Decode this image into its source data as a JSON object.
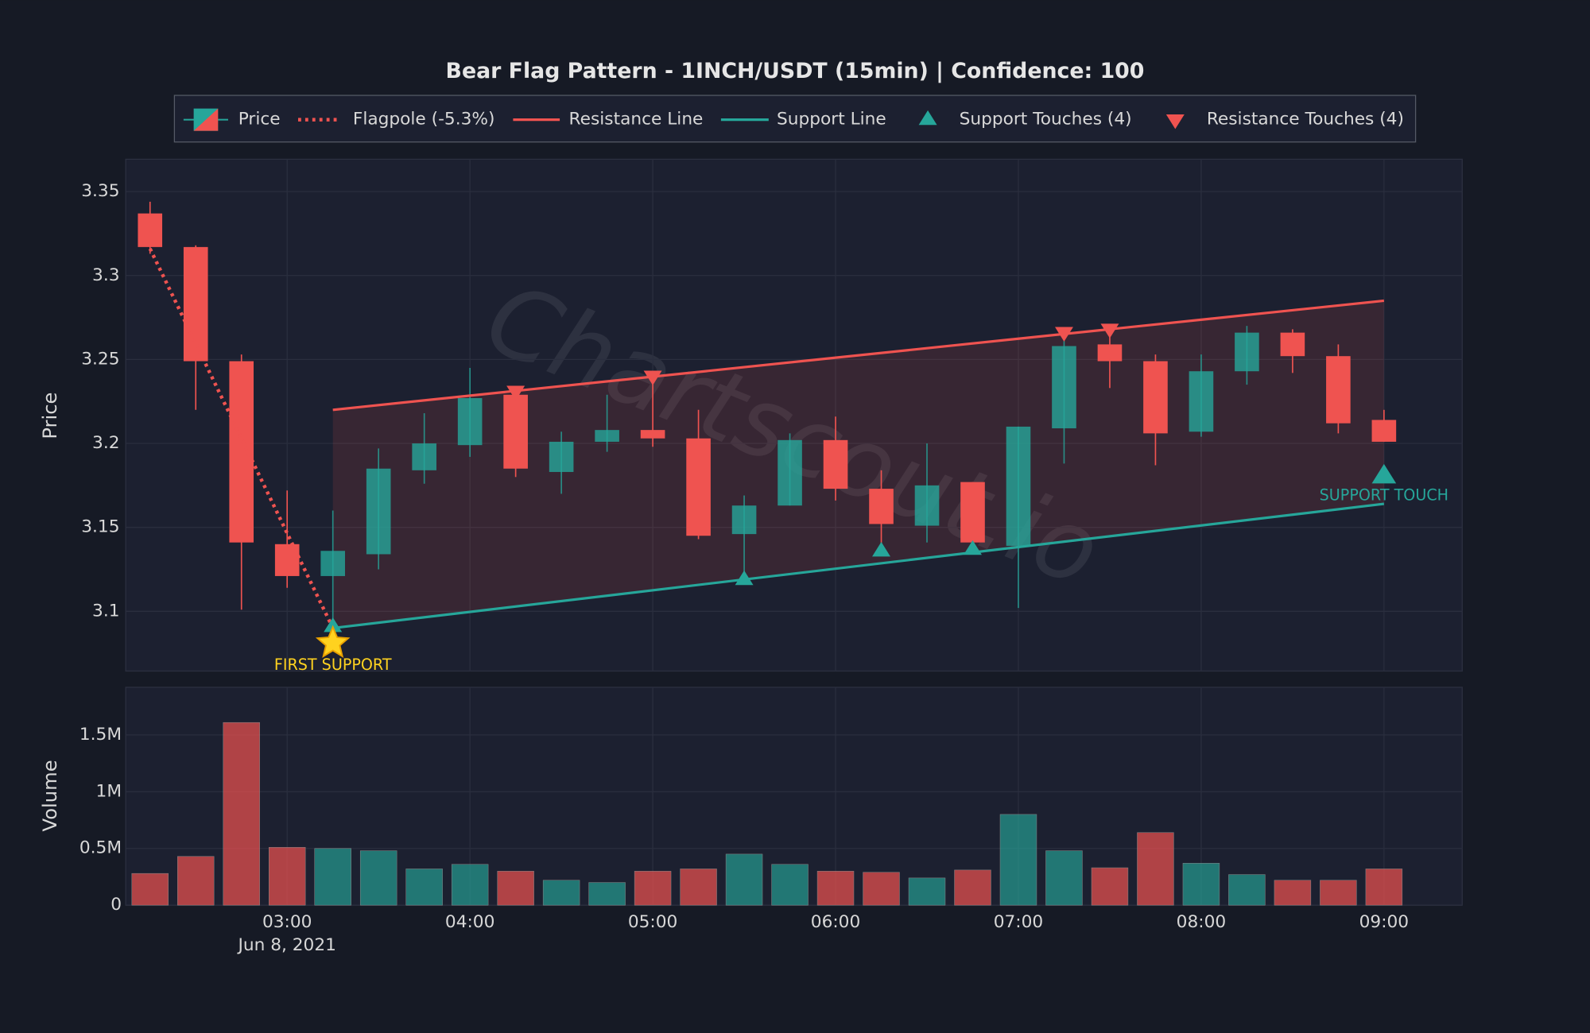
{
  "chart_data": {
    "type": "candlestick",
    "title": "Bear Flag Pattern - 1INCH/USDT (15min) | Confidence: 100",
    "watermark": "Chartscout.io",
    "price_name": "Price",
    "up_color": "#26a69a",
    "down_color": "#ef5350",
    "x": [
      2.25,
      2.5,
      2.75,
      3.0,
      3.25,
      3.5,
      3.75,
      4.0,
      4.25,
      4.5,
      4.75,
      5.0,
      5.25,
      5.5,
      5.75,
      6.0,
      6.25,
      6.5,
      6.75,
      7.0,
      7.25,
      7.5,
      7.75,
      8.0,
      8.25,
      8.5,
      8.75,
      9.0
    ],
    "open": [
      3.337,
      3.317,
      3.249,
      3.14,
      3.121,
      3.134,
      3.184,
      3.199,
      3.229,
      3.183,
      3.201,
      3.208,
      3.203,
      3.146,
      3.163,
      3.202,
      3.173,
      3.151,
      3.177,
      3.139,
      3.209,
      3.259,
      3.249,
      3.207,
      3.243,
      3.266,
      3.252,
      3.214
    ],
    "high": [
      3.344,
      3.318,
      3.253,
      3.172,
      3.16,
      3.197,
      3.218,
      3.245,
      3.232,
      3.207,
      3.229,
      3.239,
      3.22,
      3.169,
      3.206,
      3.216,
      3.184,
      3.2,
      3.177,
      3.21,
      3.261,
      3.268,
      3.253,
      3.253,
      3.27,
      3.268,
      3.259,
      3.22
    ],
    "low": [
      3.313,
      3.22,
      3.101,
      3.114,
      3.09,
      3.125,
      3.176,
      3.192,
      3.18,
      3.17,
      3.195,
      3.198,
      3.143,
      3.12,
      3.163,
      3.166,
      3.138,
      3.141,
      3.138,
      3.102,
      3.188,
      3.233,
      3.187,
      3.204,
      3.235,
      3.242,
      3.206,
      3.201
    ],
    "close": [
      3.317,
      3.249,
      3.141,
      3.121,
      3.136,
      3.185,
      3.2,
      3.227,
      3.185,
      3.201,
      3.208,
      3.203,
      3.145,
      3.163,
      3.202,
      3.173,
      3.152,
      3.175,
      3.141,
      3.21,
      3.258,
      3.249,
      3.206,
      3.243,
      3.266,
      3.252,
      3.212,
      3.201
    ],
    "volume": [
      280000,
      430000,
      1610000,
      510000,
      500000,
      480000,
      320000,
      360000,
      300000,
      220000,
      200000,
      300000,
      320000,
      450000,
      360000,
      300000,
      290000,
      240000,
      310000,
      800000,
      480000,
      330000,
      640000,
      370000,
      270000,
      220000,
      220000,
      320000
    ],
    "xlim": [
      2.117,
      9.428
    ],
    "xticks": [
      {
        "value": 3,
        "label": "03:00"
      },
      {
        "value": 4,
        "label": "04:00"
      },
      {
        "value": 5,
        "label": "05:00"
      },
      {
        "value": 6,
        "label": "06:00"
      },
      {
        "value": 7,
        "label": "07:00"
      },
      {
        "value": 8,
        "label": "08:00"
      },
      {
        "value": 9,
        "label": "09:00"
      }
    ],
    "date_label": "Jun 8, 2021",
    "ylabel": "Price",
    "ylim": [
      3.0644,
      3.3693
    ],
    "yticks": [
      3.1,
      3.15,
      3.2,
      3.25,
      3.3,
      3.35
    ],
    "volume_ylabel": "Volume",
    "volume_ylim": [
      0,
      1920000
    ],
    "volume_yticks": [
      0,
      {
        "value": 500000,
        "label": "0.5M"
      },
      {
        "value": 1000000,
        "label": "1M"
      },
      {
        "value": 1500000,
        "label": "1.5M"
      }
    ],
    "grid": true,
    "flagpole": {
      "name": "Flagpole (-5.3%)",
      "color": "#ef5350",
      "x": [
        2.25,
        3.25
      ],
      "y": [
        3.316,
        3.09
      ]
    },
    "resistance": {
      "name": "Resistance Line",
      "color": "#ef5350",
      "x": [
        3.25,
        9.0
      ],
      "y": [
        3.22,
        3.285
      ]
    },
    "support": {
      "name": "Support Line",
      "color": "#26a69a",
      "x": [
        3.25,
        9.0
      ],
      "y": [
        3.09,
        3.164
      ]
    },
    "support_touches": {
      "name": "Support Touches (4)",
      "color": "#26a69a",
      "x": [
        3.25,
        5.5,
        6.25,
        6.75
      ],
      "y": [
        3.092,
        3.12,
        3.137,
        3.138
      ]
    },
    "resistance_touches": {
      "name": "Resistance Touches (4)",
      "color": "#ef5350",
      "x": [
        4.25,
        5.0,
        7.25,
        7.5
      ],
      "y": [
        3.23,
        3.239,
        3.265,
        3.267
      ]
    },
    "annotations": [
      {
        "text": "FIRST SUPPORT",
        "x": 3.25,
        "y": 3.081,
        "color": "#ffd21f",
        "marker": "star"
      },
      {
        "text": "SUPPORT TOUCH",
        "x": 9.0,
        "y": 3.182,
        "color": "#26a69a",
        "marker": "triangle"
      }
    ]
  }
}
